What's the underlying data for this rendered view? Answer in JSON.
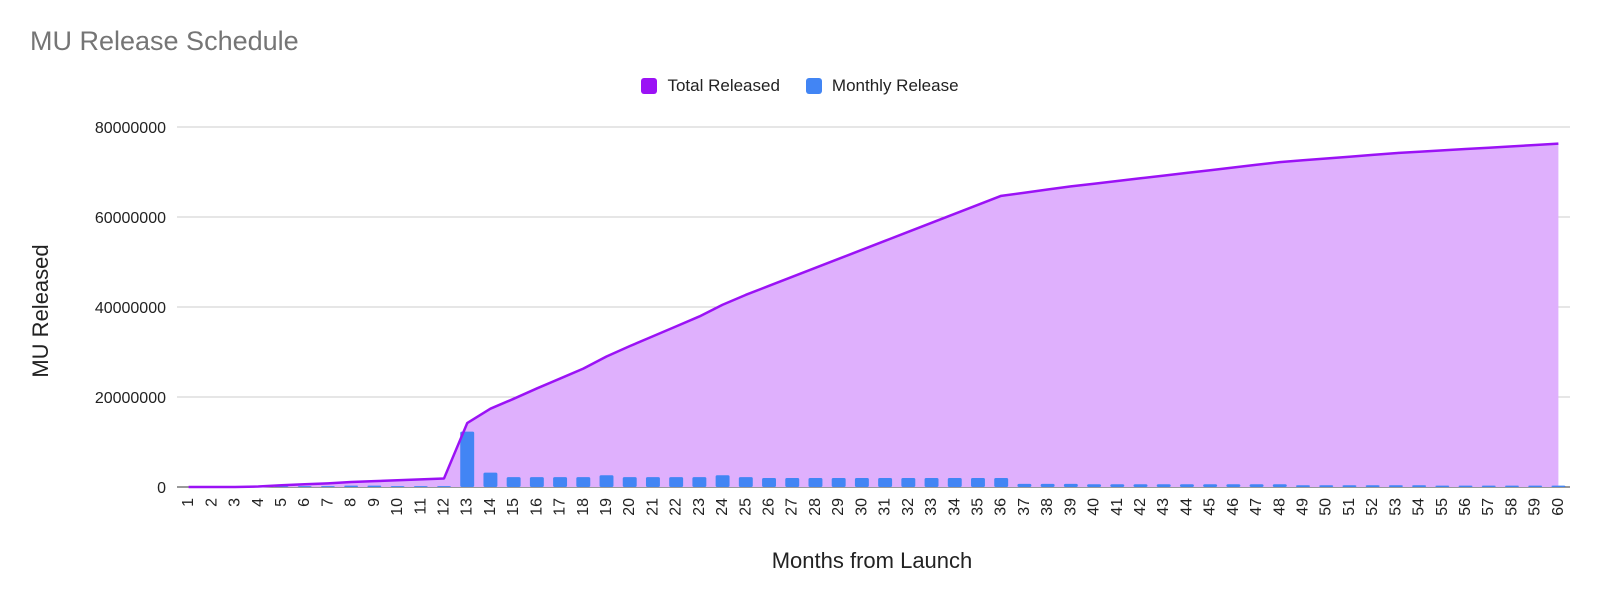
{
  "chart_data": {
    "type": "area",
    "title": "MU Release Schedule",
    "xlabel": "Months from Launch",
    "ylabel": "MU Released",
    "ylim": [
      0,
      80000000
    ],
    "yticks": [
      "0",
      "20000000",
      "40000000",
      "60000000",
      "80000000"
    ],
    "grid": true,
    "legend_position": "top-center",
    "categories": [
      "1",
      "2",
      "3",
      "4",
      "5",
      "6",
      "7",
      "8",
      "9",
      "10",
      "11",
      "12",
      "13",
      "14",
      "15",
      "16",
      "17",
      "18",
      "19",
      "20",
      "21",
      "22",
      "23",
      "24",
      "25",
      "26",
      "27",
      "28",
      "29",
      "30",
      "31",
      "32",
      "33",
      "34",
      "35",
      "36",
      "37",
      "38",
      "39",
      "40",
      "41",
      "42",
      "43",
      "44",
      "45",
      "46",
      "47",
      "48",
      "49",
      "50",
      "51",
      "52",
      "53",
      "54",
      "55",
      "56",
      "57",
      "58",
      "59",
      "60"
    ],
    "series": [
      {
        "name": "Total Released",
        "kind": "area",
        "color": "#9b12f5",
        "fill": "#dfb0fd",
        "values": [
          0,
          0,
          0,
          100000,
          400000,
          600000,
          800000,
          1100000,
          1300000,
          1500000,
          1700000,
          1900000,
          14200000,
          17400000,
          19600000,
          21900000,
          24100000,
          26300000,
          29000000,
          31300000,
          33500000,
          35700000,
          37900000,
          40500000,
          42700000,
          44700000,
          46700000,
          48700000,
          50700000,
          52700000,
          54700000,
          56700000,
          58700000,
          60700000,
          62700000,
          64700000,
          65400000,
          66100000,
          66800000,
          67400000,
          68000000,
          68600000,
          69200000,
          69800000,
          70400000,
          71000000,
          71600000,
          72200000,
          72600000,
          73000000,
          73400000,
          73800000,
          74200000,
          74500000,
          74800000,
          75100000,
          75400000,
          75700000,
          76000000,
          76300000
        ]
      },
      {
        "name": "Monthly Release",
        "kind": "bar",
        "color": "#4285f4",
        "values": [
          0,
          0,
          0,
          100000,
          200000,
          200000,
          200000,
          300000,
          300000,
          200000,
          200000,
          200000,
          12300000,
          3200000,
          2200000,
          2200000,
          2200000,
          2200000,
          2600000,
          2200000,
          2200000,
          2200000,
          2200000,
          2600000,
          2200000,
          2000000,
          2000000,
          2000000,
          2000000,
          2000000,
          2000000,
          2000000,
          2000000,
          2000000,
          2000000,
          2000000,
          700000,
          700000,
          700000,
          600000,
          600000,
          600000,
          600000,
          600000,
          600000,
          600000,
          600000,
          600000,
          400000,
          400000,
          400000,
          400000,
          400000,
          400000,
          300000,
          300000,
          300000,
          300000,
          300000,
          300000
        ]
      }
    ]
  }
}
